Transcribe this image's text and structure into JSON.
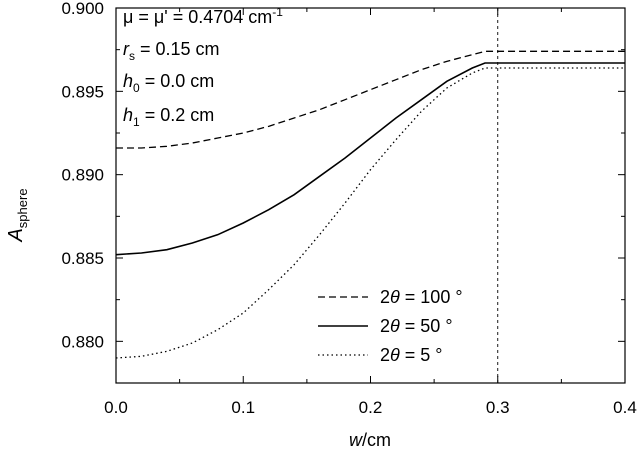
{
  "chart_data": {
    "type": "line",
    "xlabel_italic": "w",
    "xlabel_unit": "/cm",
    "ylabel_main": "A",
    "ylabel_sub": "sphere",
    "xlim": [
      0.0,
      0.4
    ],
    "ylim": [
      0.8775,
      0.9
    ],
    "x_ticks": [
      "0.0",
      "0.1",
      "0.2",
      "0.3",
      "0.4"
    ],
    "y_ticks": [
      "0.880",
      "0.885",
      "0.890",
      "0.895",
      "0.900"
    ],
    "reference_line_x": 0.3,
    "annotations": {
      "mu": "μ = μ' = 0.4704 cm",
      "mu_sup": "-1",
      "rs_main": "r",
      "rs_sub": "s",
      "rs_value": " = 0.15 cm",
      "h0_main": "h",
      "h0_sub": "0",
      "h0_value": " = 0.0 cm",
      "h1_main": "h",
      "h1_sub": "1",
      "h1_value": " = 0.2 cm"
    },
    "legend_position": "bottom-center",
    "series": [
      {
        "name": "2θ = 100 °",
        "name_prefix": "2",
        "name_symbol": "θ",
        "name_suffix": " = 100 °",
        "style": "dashed",
        "x": [
          0.0,
          0.02,
          0.04,
          0.06,
          0.08,
          0.1,
          0.12,
          0.14,
          0.16,
          0.18,
          0.2,
          0.22,
          0.24,
          0.26,
          0.28,
          0.29,
          0.3,
          0.32,
          0.35,
          0.38,
          0.4
        ],
        "y": [
          0.8916,
          0.8916,
          0.8917,
          0.8919,
          0.8922,
          0.8925,
          0.8929,
          0.8934,
          0.8939,
          0.8945,
          0.8951,
          0.8957,
          0.8963,
          0.8968,
          0.8972,
          0.8974,
          0.8974,
          0.8974,
          0.8974,
          0.8974,
          0.8974
        ]
      },
      {
        "name": "2θ = 50 °",
        "name_prefix": "2",
        "name_symbol": "θ",
        "name_suffix": " = 50 °",
        "style": "solid",
        "x": [
          0.0,
          0.02,
          0.04,
          0.06,
          0.08,
          0.1,
          0.12,
          0.14,
          0.16,
          0.18,
          0.2,
          0.22,
          0.24,
          0.26,
          0.28,
          0.29,
          0.3,
          0.32,
          0.35,
          0.38,
          0.4
        ],
        "y": [
          0.8852,
          0.8853,
          0.8855,
          0.8859,
          0.8864,
          0.8871,
          0.8879,
          0.8888,
          0.8899,
          0.891,
          0.8922,
          0.8934,
          0.8945,
          0.8956,
          0.8964,
          0.8967,
          0.8967,
          0.8967,
          0.8967,
          0.8967,
          0.8967
        ]
      },
      {
        "name": "2θ = 5 °",
        "name_prefix": "2",
        "name_symbol": "θ",
        "name_suffix": " = 5 °",
        "style": "dotted",
        "x": [
          0.0,
          0.02,
          0.04,
          0.06,
          0.08,
          0.1,
          0.12,
          0.14,
          0.16,
          0.18,
          0.2,
          0.22,
          0.24,
          0.26,
          0.28,
          0.29,
          0.3,
          0.32,
          0.35,
          0.38,
          0.4
        ],
        "y": [
          0.879,
          0.8791,
          0.8794,
          0.8799,
          0.8807,
          0.8817,
          0.8831,
          0.8846,
          0.8864,
          0.8883,
          0.8903,
          0.8921,
          0.8938,
          0.8952,
          0.8961,
          0.8964,
          0.8964,
          0.8964,
          0.8964,
          0.8964,
          0.8964
        ]
      }
    ]
  }
}
